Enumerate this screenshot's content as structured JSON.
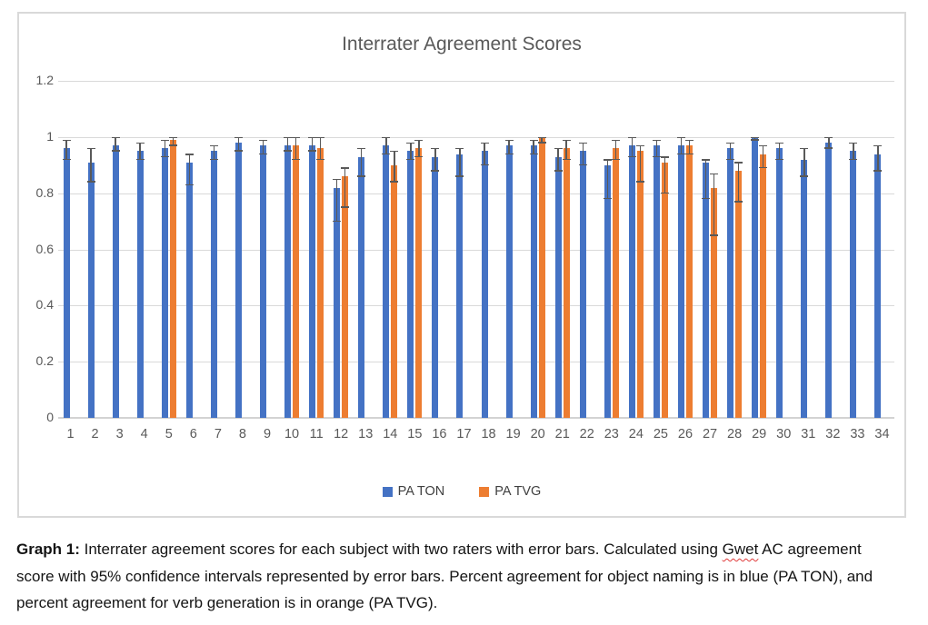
{
  "chart": {
    "title": "Interrater Agreement Scores",
    "y_axis": {
      "ticks": [
        {
          "label": "1.2",
          "value": 1.2
        },
        {
          "label": "1",
          "value": 1.0
        },
        {
          "label": "0.8",
          "value": 0.8
        },
        {
          "label": "0.6",
          "value": 0.6
        },
        {
          "label": "0.4",
          "value": 0.4
        },
        {
          "label": "0.2",
          "value": 0.2
        },
        {
          "label": "0",
          "value": 0.0
        }
      ]
    }
  },
  "chart_data": {
    "type": "bar",
    "title": "Interrater Agreement Scores",
    "categories": [
      "1",
      "2",
      "3",
      "4",
      "5",
      "6",
      "7",
      "8",
      "9",
      "10",
      "11",
      "12",
      "13",
      "14",
      "15",
      "16",
      "17",
      "18",
      "19",
      "20",
      "21",
      "22",
      "23",
      "24",
      "25",
      "26",
      "27",
      "28",
      "29",
      "30",
      "31",
      "32",
      "33",
      "34"
    ],
    "ylim": [
      0,
      1.2
    ],
    "grid": true,
    "legend_position": "bottom",
    "error_bars": "95% confidence intervals",
    "series": [
      {
        "name": "PA TON",
        "color": "#4472C4",
        "values": [
          0.96,
          0.91,
          0.97,
          0.95,
          0.96,
          0.91,
          0.95,
          0.98,
          0.97,
          0.97,
          0.97,
          0.82,
          0.93,
          0.97,
          0.95,
          0.93,
          0.94,
          0.95,
          0.97,
          0.97,
          0.93,
          0.95,
          0.9,
          0.97,
          0.97,
          0.97,
          0.91,
          0.96,
          1.0,
          0.96,
          0.92,
          0.98,
          0.95,
          0.94
        ],
        "ci_low": [
          0.92,
          0.84,
          0.95,
          0.92,
          0.93,
          0.83,
          0.92,
          0.95,
          0.94,
          0.95,
          0.95,
          0.7,
          0.86,
          0.94,
          0.92,
          0.88,
          0.86,
          0.9,
          0.94,
          0.94,
          0.88,
          0.9,
          0.78,
          0.93,
          0.93,
          0.94,
          0.78,
          0.92,
          0.99,
          0.92,
          0.86,
          0.96,
          0.92,
          0.88
        ],
        "ci_high": [
          0.99,
          0.96,
          1.0,
          0.98,
          0.99,
          0.94,
          0.97,
          1.0,
          0.99,
          1.0,
          1.0,
          0.85,
          0.96,
          1.0,
          0.98,
          0.96,
          0.96,
          0.98,
          0.99,
          0.99,
          0.96,
          0.98,
          0.92,
          1.0,
          0.99,
          1.0,
          0.92,
          0.98,
          1.0,
          0.98,
          0.96,
          1.0,
          0.98,
          0.97
        ]
      },
      {
        "name": "PA TVG",
        "color": "#ED7D31",
        "values": [
          null,
          null,
          null,
          null,
          0.99,
          null,
          null,
          null,
          null,
          0.97,
          0.96,
          0.86,
          null,
          0.9,
          0.96,
          null,
          null,
          null,
          null,
          1.0,
          0.96,
          null,
          0.96,
          0.95,
          0.91,
          0.97,
          0.82,
          0.88,
          0.94,
          null,
          null,
          null,
          null,
          null
        ],
        "ci_low": [
          null,
          null,
          null,
          null,
          0.97,
          null,
          null,
          null,
          null,
          0.92,
          0.92,
          0.75,
          null,
          0.84,
          0.93,
          null,
          null,
          null,
          null,
          0.98,
          0.92,
          null,
          0.92,
          0.84,
          0.8,
          0.94,
          0.65,
          0.77,
          0.89,
          null,
          null,
          null,
          null,
          null
        ],
        "ci_high": [
          null,
          null,
          null,
          null,
          1.0,
          null,
          null,
          null,
          null,
          1.0,
          1.0,
          0.89,
          null,
          0.95,
          0.99,
          null,
          null,
          null,
          null,
          1.0,
          0.99,
          null,
          0.99,
          0.97,
          0.93,
          0.99,
          0.87,
          0.91,
          0.97,
          null,
          null,
          null,
          null,
          null
        ]
      }
    ]
  },
  "colors": {
    "blue_series": "#4472C4",
    "orange_series": "#ED7D31",
    "error_bar": "#595959",
    "gridline": "#D9D9D9",
    "axis_text": "#595959",
    "caption_text": "#141414",
    "spellcheck_squiggle": "#e03a3a"
  },
  "caption": {
    "bold_label": "Graph 1:",
    "text_before_misspelled": " Interrater agreement scores for each subject with two raters with error bars. Calculated using ",
    "misspelled_word": "Gwet",
    "text_after_misspelled": " AC agreement score with 95% confidence intervals represented by error bars. Percent agreement for object naming is in blue (PA TON), and percent agreement for verb generation is in orange (PA TVG)."
  }
}
